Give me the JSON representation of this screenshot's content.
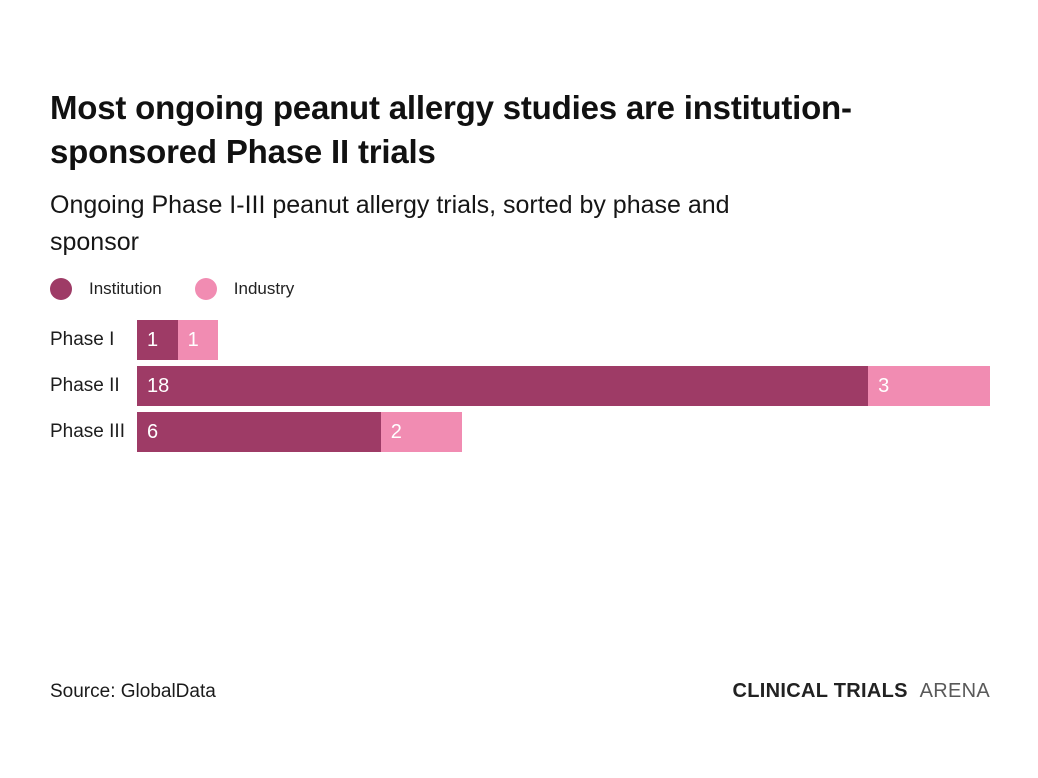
{
  "page": {
    "title": "Most ongoing peanut allergy studies are institution-\nsponsored Phase II trials",
    "subtitle": "Ongoing Phase I-III peanut allergy trials, sorted by phase and\nsponsor"
  },
  "colors": {
    "institution": "#9e3b66",
    "industry": "#f18cb2",
    "title_text": "#111111",
    "bar_value_text": "#ffffff",
    "brand_bold_text": "#222222",
    "brand_light_text": "#595959"
  },
  "chart_data": {
    "type": "bar",
    "orientation": "horizontal",
    "stacked": true,
    "title": "Most ongoing peanut allergy studies are institution-sponsored Phase II trials",
    "subtitle": "Ongoing Phase I-III peanut allergy trials, sorted by phase and sponsor",
    "categories": [
      "Phase I",
      "Phase II",
      "Phase III"
    ],
    "series": [
      {
        "name": "Institution",
        "color": "#9e3b66",
        "values": [
          1,
          18,
          6
        ]
      },
      {
        "name": "Industry",
        "color": "#f18cb2",
        "values": [
          1,
          3,
          2
        ]
      }
    ],
    "xlim": [
      0,
      21
    ],
    "grid": false,
    "axis_ticks": "none",
    "legend_position": "top-left",
    "value_labels": "inside-left",
    "source": "Source: GlobalData"
  },
  "footer": {
    "source": "Source: GlobalData",
    "brand_bold": "CLINICAL TRIALS",
    "brand_light": "ARENA"
  }
}
